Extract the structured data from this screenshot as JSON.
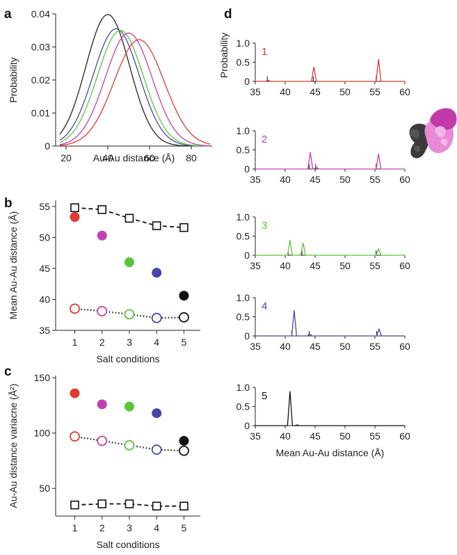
{
  "panel_letters": {
    "a": "a",
    "b": "b",
    "c": "c",
    "d": "d"
  },
  "chart_data": [
    {
      "id": "a",
      "type": "line",
      "xlabel": "Au-Au distance (Å)",
      "ylabel": "Probability",
      "xlim": [
        15,
        90
      ],
      "ylim": [
        0,
        0.04
      ],
      "xticks": [
        "20",
        "40",
        "60",
        "80"
      ],
      "xtick_values": [
        20,
        40,
        60,
        80
      ],
      "yticks": [
        "0",
        "0.01",
        "0.02",
        "0.03",
        "0.04"
      ],
      "ytick_values": [
        0,
        0.01,
        0.02,
        0.03,
        0.04
      ],
      "series": [
        {
          "mean": 40,
          "sd": 10.5,
          "peak": 0.0398,
          "color": "#222222"
        },
        {
          "mean": 44,
          "sd": 11.0,
          "peak": 0.0355,
          "color": "#4a44aa"
        },
        {
          "mean": 46,
          "sd": 11.0,
          "peak": 0.035,
          "color": "#5cc43a"
        },
        {
          "mean": 50,
          "sd": 11.2,
          "peak": 0.0342,
          "color": "#c040b4"
        },
        {
          "mean": 55,
          "sd": 12.0,
          "peak": 0.0322,
          "color": "#e23a2e"
        }
      ]
    },
    {
      "id": "b",
      "type": "scatter",
      "xlabel": "Salt conditions",
      "ylabel": "Mean Au-Au distance (Å)",
      "xlim": [
        0.3,
        5.6
      ],
      "ylim": [
        35,
        56
      ],
      "xticks": [
        "1",
        "2",
        "3",
        "4",
        "5"
      ],
      "xtick_values": [
        1,
        2,
        3,
        4,
        5
      ],
      "yticks": [
        "35",
        "40",
        "45",
        "50",
        "55"
      ],
      "ytick_values": [
        35,
        40,
        45,
        50,
        55
      ],
      "filled": {
        "x": [
          1,
          2,
          3,
          4,
          5
        ],
        "y": [
          53.3,
          50.3,
          46.0,
          44.3,
          40.6
        ]
      },
      "open_circles": {
        "x": [
          1,
          2,
          3,
          4,
          5
        ],
        "y": [
          38.5,
          38.1,
          37.6,
          37.0,
          37.1
        ]
      },
      "open_squares": {
        "x": [
          1,
          2,
          3,
          4,
          5
        ],
        "y": [
          54.8,
          54.5,
          53.1,
          51.9,
          51.6
        ]
      }
    },
    {
      "id": "c",
      "type": "scatter",
      "xlabel": "Salt conditions",
      "ylabel": "Au-Au distance variacne (Å²)",
      "xlim": [
        0.3,
        5.6
      ],
      "ylim": [
        25,
        152
      ],
      "xticks": [
        "1",
        "2",
        "3",
        "4",
        "5"
      ],
      "xtick_values": [
        1,
        2,
        3,
        4,
        5
      ],
      "yticks": [
        "50",
        "100",
        "150"
      ],
      "ytick_values": [
        50,
        100,
        150
      ],
      "filled": {
        "x": [
          1,
          2,
          3,
          4,
          5
        ],
        "y": [
          136,
          126,
          124,
          118,
          93
        ]
      },
      "open_circles": {
        "x": [
          1,
          2,
          3,
          4,
          5
        ],
        "y": [
          97,
          93,
          89,
          85,
          84
        ]
      },
      "open_squares": {
        "x": [
          1,
          2,
          3,
          4,
          5
        ],
        "y": [
          35,
          36,
          36,
          34,
          34
        ]
      }
    }
  ],
  "point_colors": [
    "#e23a2e",
    "#c040b4",
    "#5cc43a",
    "#4a44aa",
    "#111111"
  ],
  "panel_d": {
    "ylabel": "Probability",
    "xlabel": "Mean Au-Au distance (Å)",
    "xlim": [
      35,
      60
    ],
    "ylim": [
      0,
      1.0
    ],
    "xticks": [
      "35",
      "40",
      "45",
      "50",
      "55",
      "60"
    ],
    "xtick_values": [
      35,
      40,
      45,
      50,
      55,
      60
    ],
    "yticks": [
      "0",
      "0.5",
      "1.0"
    ],
    "ytick_values": [
      0,
      0.5,
      1.0
    ],
    "traces": [
      {
        "label": "1",
        "color": "#e23a2e",
        "peaks": [
          {
            "x": 37.1,
            "h": 0.03
          },
          {
            "x": 44.8,
            "h": 0.38
          },
          {
            "x": 55.6,
            "h": 0.58
          }
        ],
        "black_ticks": [
          37.0,
          44.7,
          55.2
        ]
      },
      {
        "label": "2",
        "color": "#c040b4",
        "peaks": [
          {
            "x": 44.2,
            "h": 0.44
          },
          {
            "x": 45.2,
            "h": 0.05
          },
          {
            "x": 55.6,
            "h": 0.4
          }
        ],
        "black_ticks": [
          44.0,
          45.1,
          55.2
        ]
      },
      {
        "label": "3",
        "color": "#5cc43a",
        "peaks": [
          {
            "x": 40.8,
            "h": 0.4
          },
          {
            "x": 43.0,
            "h": 0.32
          },
          {
            "x": 55.6,
            "h": 0.17
          }
        ],
        "black_ticks": [
          40.5,
          42.8,
          55.2
        ]
      },
      {
        "label": "4",
        "color": "#4a44aa",
        "peaks": [
          {
            "x": 41.5,
            "h": 0.67
          },
          {
            "x": 44.1,
            "h": 0.05
          },
          {
            "x": 55.7,
            "h": 0.18
          }
        ],
        "black_ticks": [
          41.1,
          44.0,
          55.3
        ]
      },
      {
        "label": "5",
        "color": "#111111",
        "peaks": [
          {
            "x": 40.8,
            "h": 0.9
          },
          {
            "x": 42.0,
            "h": 0.02
          }
        ],
        "black_ticks": [
          40.4
        ]
      }
    ]
  }
}
